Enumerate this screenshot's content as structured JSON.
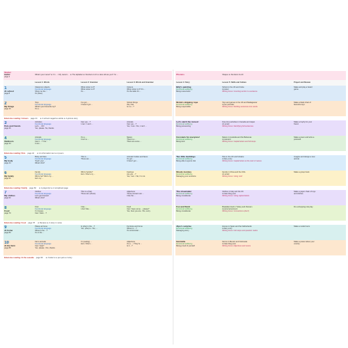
{
  "left": {
    "starter": {
      "title": "Starter",
      "subtitle": "Hello!",
      "page": "page 4",
      "topics": "What's your name?  ★  I'm ... / My name's ...  ★  The alphabet  ★  Numbers 1-10  ★  How old are you? I'm ..."
    },
    "headers": [
      "",
      "Lesson 1: Words",
      "Lesson 2: Grammar",
      "Lesson 3: Words and Grammar"
    ],
    "units": [
      {
        "num": "1",
        "title": "At school",
        "page": "page 8",
        "a": [
          "Classroom objects",
          "Functional language",
          "Show me the ...",
          "It's (blue)."
        ],
        "b": [
          "What colour is it?",
          "What colour is it?",
          "It's ..."
        ],
        "c": [
          "Colours",
          "What colour is it? It's ...",
          "It's the table it's ..."
        ]
      },
      {
        "num": "2",
        "title": "My things",
        "page": "page 16",
        "a": [
          "Toys",
          "Functional language",
          "What's your favourite toy?",
          "It's a ..."
        ],
        "b": [
          "I've got ...",
          "I haven't got ..."
        ],
        "c": [
          "School things",
          "this, that",
          "Is it a ...?"
        ]
      },
      {
        "er": true,
        "label": "Extensive reading: Colours",
        "page": "page 24",
        "text": "★  A school magazine article  ★  A picture story"
      },
      {
        "num": "3",
        "title": "Pets and friends",
        "page": "page 26",
        "a": [
          "Activities",
          "Functional language",
          "Let's ... OK!",
          "Yes, please. No, thanks."
        ],
        "b": [
          "Can you ...?",
          "I can / I can't ..."
        ],
        "c": [
          "Animals",
          "Can you ...?",
          "Yes, I can. / No, I can't ..."
        ]
      },
      {
        "num": "4",
        "title": "Outdoors",
        "page": "page 34",
        "a": [
          "Animals",
          "Functional language",
          "Can it ...? Yes...",
          "It can ..."
        ],
        "b": [
          "It's a ...",
          "It isn't a ..."
        ],
        "c": [
          "Nature",
          "There's a ...",
          "There are some ..."
        ]
      },
      {
        "er": true,
        "label": "Extensive reading: Pets",
        "page": "page 42",
        "text": "★  An information text  ★  A poem"
      },
      {
        "num": "5",
        "title": "My body",
        "page": "page 44",
        "a": [
          "Body and face",
          "Functional language",
          "Touch your ...",
          "What's this?"
        ],
        "b": [
          "This is ...",
          "These are ..."
        ],
        "c": [
          "Animals' bodies and faces",
          "It's got ...",
          "It hasn't got ..."
        ]
      },
      {
        "num": "6",
        "title": "My family",
        "page": "page 52",
        "a": [
          "Family",
          "Functional language",
          "Who's he? She's my ...",
          "He's my ..."
        ],
        "b": [
          "Who's he/she?",
          "He's / She's my ..."
        ],
        "c": [
          "Feelings",
          "Are you ...?",
          "Yes, I am. / No, I'm not."
        ]
      },
      {
        "er": true,
        "label": "Extensive reading: Family",
        "page": "page 60",
        "text": "★  A playscript  ★  A scrapbook page"
      },
      {
        "num": "7",
        "title": "My clothes",
        "page": "page 62",
        "a": [
          "Clothes",
          "Functional language",
          "Let's get dressed.",
          "What's this?"
        ],
        "b": [
          "This is a (hat).",
          "These are (shoes)."
        ],
        "c": [
          "Adjectives",
          "Those trousers are ...",
          "I like the ..."
        ]
      },
      {
        "num": "8",
        "title": "Food",
        "page": "page 70",
        "a": [
          "Fruit",
          "Functional language",
          "I'm hungry.",
          "Can I have ...?"
        ],
        "b": [
          "I like ...",
          "I don't like ..."
        ],
        "c": [
          "Food",
          "Can I have some ... please?",
          "Yes, here you are. / No, sorry."
        ]
      },
      {
        "er": true,
        "label": "Extensive reading: Food",
        "page": "page 78",
        "text": "★  Recipes  ★  A story in verse"
      },
      {
        "num": "9",
        "title": "At home",
        "page": "page 80",
        "a": [
          "Places at home",
          "Functional language",
          "Where's the ...?",
          "It's in the ..."
        ],
        "b": [
          "Is (she) in the ...?",
          "Yes, (she) is. / No, ..."
        ],
        "c": [
          "Furniture and home",
          "Where is ...?",
          "It's on/in/under ..."
        ]
      },
      {
        "num": "10",
        "title": "At the farm",
        "page": "page 88",
        "a": [
          "Farm animals",
          "Functional language",
          "Can I help?",
          "Yes, please. / No, thanks."
        ],
        "b": [
          "I'm (eating) ...",
          "He's / She's ..."
        ],
        "c": [
          "Adjectives",
          "It's a ... / They're ...",
          "Is it ...?"
        ]
      },
      {
        "er": true,
        "label": "Extensive reading: At the seaside",
        "page": "page 96",
        "text": "★  A letter to a pen pal  ★  A story"
      }
    ]
  },
  "right": {
    "starter": {
      "title": "Phonics",
      "topics": "Shapes  ★  Numbers 11-20"
    },
    "headers": [
      "Lesson 4: Story",
      "Lesson 5: Skills and Culture",
      "Project and Review"
    ],
    "units": [
      {
        "title": "Billy's painting",
        "sub": "Emotional wellbeing",
        "sub2": "Being resourceful",
        "b": [
          "School in the UK and Cuba",
          "A poster",
          "Writing focus: Counting words in a sentence"
        ],
        "c": [
          "Make and play a board",
          "game."
        ]
      },
      {
        "title": "Nisha's skipping rope",
        "sub": "Emotional wellbeing",
        "sub2": "Being responsible",
        "b": [
          "Toys and games in the UK and Madagascar",
          "A pen pal letter",
          "Writing focus: Dividing sentences into words"
        ],
        "c": [
          "Make a black chart of",
          "favourite toys."
        ]
      },
      {
        "er": true
      },
      {
        "title": "Let's catch the moves!",
        "sub": "Emotional wellbeing",
        "sub2": "Being persevering",
        "b": [
          "Free time activities in Canada and Japan",
          "An email",
          "Writing focus: Identifying full sentences"
        ],
        "c": [
          "Make a trophy for your",
          "friend."
        ]
      },
      {
        "title": "Coconuts for everyone!",
        "sub": "Emotional wellbeing",
        "sub2": "Being kind",
        "b": [
          "Nature in Australia and the Bahamas",
          "A postcard",
          "Writing focus: Capital letters and full stops"
        ],
        "c": [
          "Make a poem and write a",
          "postcard."
        ]
      },
      {
        "er": true
      },
      {
        "title": "Two little ducklings",
        "sub": "Emotional wellbeing",
        "sub2": "Being able to ignore risk",
        "b": [
          "Pets in the UK and Ukraine",
          "A diary entry",
          "Writing focus: Capital letters at the start of names"
        ],
        "c": [
          "Imagine and design a new",
          "animal."
        ]
      },
      {
        "title": "Moody monkey",
        "sub": "Emotional wellbeing",
        "sub2": "Managing your emotions",
        "b": [
          "Family in China and the USA",
          "An email",
          "Writing focus: Using 'and'"
        ],
        "c": [
          "Make a group book."
        ]
      },
      {
        "er": true
      },
      {
        "title": "The shoemaker",
        "sub": "Emotional wellbeing",
        "sub2": "Being considerate",
        "b": [
          "Clothes in Italy and the UK",
          "A class blog post",
          "Writing focus: Using capital letters"
        ],
        "c": [
          "Make a paper chain of toys",
          "and clothes."
        ]
      },
      {
        "title": "Fox and Stork",
        "sub": "Emotional wellbeing",
        "sub2": "Being considerate",
        "b": [
          "Breakfast food in Turkey and Vietnam",
          "A personal account",
          "Writing focus: Connections (don't)"
        ],
        "c": [
          "Do a shopping role play."
        ]
      },
      {
        "er": true
      },
      {
        "title": "Alpo's surprise",
        "sub": "Emotional wellbeing",
        "sub2": "Managing worry",
        "b": [
          "Homes in Spain and the Netherlands",
          "A diary entry",
          "Writing focus: Full stops and question marks"
        ],
        "c": [
          "Make a model room."
        ]
      },
      {
        "title": "Henrietta",
        "sub": "Emotional wellbeing",
        "sub2": "Being proud of yourself",
        "b": [
          "Farms in Mexico and Indonesia",
          "A class blog post",
          "Writing focus: Adjectives and nouns"
        ],
        "c": [
          "Make a poster about your",
          "country."
        ]
      },
      {
        "er": true
      }
    ]
  },
  "colors": {
    "band": [
      "#dbeaf8",
      "#fde7cf",
      "#e8defb",
      "#dff1dc",
      "#d9ecfb",
      "#fdf1c9",
      "#e8defb",
      "#e6f4d2",
      "#d8f0ef",
      "#fde7cf"
    ],
    "accent_blue": "#1d6fb0",
    "functional_blue": "#2a6dbf",
    "wellbeing_green": "#3aa04f",
    "reading_red": "#c0392b",
    "starter_pink": "#fde2ec"
  }
}
